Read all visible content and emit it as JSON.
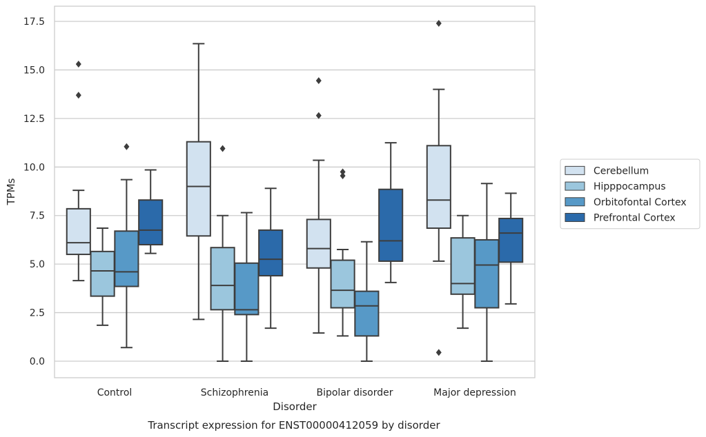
{
  "chart_data": {
    "type": "boxplot",
    "caption": "Transcript expression for ENST00000412059 by disorder",
    "xlabel": "Disorder",
    "ylabel": "TPMs",
    "ylim": [
      -0.85,
      18.3
    ],
    "yticks": [
      0.0,
      2.5,
      5.0,
      7.5,
      10.0,
      12.5,
      15.0,
      17.5
    ],
    "ytick_labels": [
      "0.0",
      "2.5",
      "5.0",
      "7.5",
      "10.0",
      "12.5",
      "15.0",
      "17.5"
    ],
    "grid": "horizontal",
    "legend_position": "right",
    "categories": [
      "Control",
      "Schizophrenia",
      "Bipolar disorder",
      "Major depression"
    ],
    "series": [
      {
        "name": "Cerebellum",
        "color": "#d2e2f0",
        "boxes": [
          {
            "whislo": 4.15,
            "q1": 5.5,
            "med": 6.1,
            "q3": 7.85,
            "whishi": 8.8,
            "fliers": [
              13.7,
              15.3
            ]
          },
          {
            "whislo": 2.15,
            "q1": 6.45,
            "med": 9.0,
            "q3": 11.3,
            "whishi": 16.35,
            "fliers": []
          },
          {
            "whislo": 1.45,
            "q1": 4.8,
            "med": 5.8,
            "q3": 7.3,
            "whishi": 10.35,
            "fliers": [
              12.65,
              14.45
            ]
          },
          {
            "whislo": 5.15,
            "q1": 6.85,
            "med": 8.3,
            "q3": 11.1,
            "whishi": 14.0,
            "fliers": [
              0.45,
              17.4
            ]
          }
        ]
      },
      {
        "name": "Hipppocampus",
        "color": "#9bc6dd",
        "boxes": [
          {
            "whislo": 1.85,
            "q1": 3.35,
            "med": 4.65,
            "q3": 5.65,
            "whishi": 6.85,
            "fliers": []
          },
          {
            "whislo": 0.0,
            "q1": 2.65,
            "med": 3.9,
            "q3": 5.85,
            "whishi": 7.5,
            "fliers": [
              10.95
            ]
          },
          {
            "whislo": 1.3,
            "q1": 2.75,
            "med": 3.65,
            "q3": 5.2,
            "whishi": 5.75,
            "fliers": [
              9.55,
              9.75
            ]
          },
          {
            "whislo": 1.7,
            "q1": 3.45,
            "med": 4.0,
            "q3": 6.35,
            "whishi": 7.5,
            "fliers": []
          }
        ]
      },
      {
        "name": "Orbitofontal Cortex",
        "color": "#5799c7",
        "boxes": [
          {
            "whislo": 0.7,
            "q1": 3.85,
            "med": 4.6,
            "q3": 6.7,
            "whishi": 9.35,
            "fliers": [
              11.05
            ]
          },
          {
            "whislo": 0.0,
            "q1": 2.4,
            "med": 2.65,
            "q3": 5.05,
            "whishi": 7.65,
            "fliers": []
          },
          {
            "whislo": 0.0,
            "q1": 1.3,
            "med": 2.85,
            "q3": 3.6,
            "whishi": 6.15,
            "fliers": []
          },
          {
            "whislo": 0.0,
            "q1": 2.75,
            "med": 4.95,
            "q3": 6.25,
            "whishi": 9.15,
            "fliers": []
          }
        ]
      },
      {
        "name": "Prefrontal Cortex",
        "color": "#2b6aaa",
        "boxes": [
          {
            "whislo": 5.55,
            "q1": 6.0,
            "med": 6.75,
            "q3": 8.3,
            "whishi": 9.85,
            "fliers": []
          },
          {
            "whislo": 1.7,
            "q1": 4.4,
            "med": 5.25,
            "q3": 6.75,
            "whishi": 8.9,
            "fliers": []
          },
          {
            "whislo": 4.05,
            "q1": 5.15,
            "med": 6.2,
            "q3": 8.85,
            "whishi": 11.25,
            "fliers": []
          },
          {
            "whislo": 2.95,
            "q1": 5.1,
            "med": 6.6,
            "q3": 7.35,
            "whishi": 8.65,
            "fliers": []
          }
        ]
      }
    ]
  }
}
